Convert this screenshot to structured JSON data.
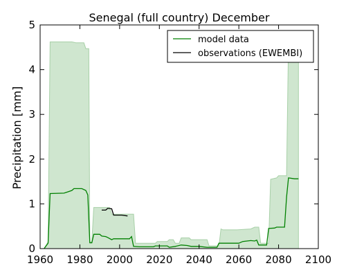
{
  "chart_data": {
    "type": "line",
    "title": "Senegal (full country) December",
    "xlabel": "",
    "ylabel": "Precipitation [mm]",
    "xlim": [
      1960,
      2100
    ],
    "ylim": [
      0,
      5
    ],
    "xticks": [
      "1960",
      "1980",
      "2000",
      "2020",
      "2040",
      "2060",
      "2080",
      "2100"
    ],
    "yticks": [
      "0",
      "1",
      "2",
      "3",
      "4",
      "5"
    ],
    "grid": false,
    "legend_position": "top-right",
    "band": {
      "color": "#cfe6cf",
      "edge_color": "#a8d0a8",
      "upper": [
        [
          1962,
          0
        ],
        [
          1964,
          0.15
        ],
        [
          1965,
          4.62
        ],
        [
          1976,
          4.62
        ],
        [
          1978,
          4.6
        ],
        [
          1982,
          4.6
        ],
        [
          1983,
          4.47
        ],
        [
          1984.5,
          4.47
        ],
        [
          1985,
          0.15
        ],
        [
          1986,
          0.15
        ],
        [
          1987,
          0.92
        ],
        [
          1995,
          0.92
        ],
        [
          1996,
          0.77
        ],
        [
          2007,
          0.77
        ],
        [
          2008,
          0.12
        ],
        [
          2018,
          0.12
        ],
        [
          2019,
          0.16
        ],
        [
          2024,
          0.16
        ],
        [
          2025,
          0.2
        ],
        [
          2027,
          0.2
        ],
        [
          2028,
          0.12
        ],
        [
          2030,
          0.12
        ],
        [
          2031,
          0.24
        ],
        [
          2035,
          0.24
        ],
        [
          2036,
          0.2
        ],
        [
          2044,
          0.2
        ],
        [
          2045,
          0.06
        ],
        [
          2050,
          0.06
        ],
        [
          2051,
          0.44
        ],
        [
          2052,
          0.42
        ],
        [
          2058,
          0.42
        ],
        [
          2059,
          0.42
        ],
        [
          2066,
          0.44
        ],
        [
          2068,
          0.48
        ],
        [
          2070,
          0.48
        ],
        [
          2071,
          0.12
        ],
        [
          2075,
          0.12
        ],
        [
          2076,
          1.55
        ],
        [
          2079,
          1.58
        ],
        [
          2080,
          1.63
        ],
        [
          2084,
          1.63
        ],
        [
          2085,
          4.62
        ],
        [
          2090,
          4.62
        ]
      ],
      "lower": [
        [
          1962,
          0
        ],
        [
          2090,
          0
        ]
      ]
    },
    "series": [
      {
        "name": "model data",
        "color": "#008000",
        "points": [
          [
            1962,
            0
          ],
          [
            1964,
            0.12
          ],
          [
            1965,
            1.23
          ],
          [
            1972,
            1.24
          ],
          [
            1974,
            1.27
          ],
          [
            1976,
            1.3
          ],
          [
            1977,
            1.34
          ],
          [
            1981,
            1.34
          ],
          [
            1983,
            1.3
          ],
          [
            1984,
            1.2
          ],
          [
            1985,
            0.13
          ],
          [
            1986,
            0.13
          ],
          [
            1987,
            0.32
          ],
          [
            1990,
            0.32
          ],
          [
            1991,
            0.28
          ],
          [
            1993,
            0.27
          ],
          [
            1994,
            0.25
          ],
          [
            1996,
            0.2
          ],
          [
            1997,
            0.22
          ],
          [
            2005,
            0.22
          ],
          [
            2006,
            0.27
          ],
          [
            2007,
            0.05
          ],
          [
            2010,
            0.04
          ],
          [
            2017,
            0.04
          ],
          [
            2018,
            0.06
          ],
          [
            2024,
            0.06
          ],
          [
            2025,
            0.03
          ],
          [
            2028,
            0.05
          ],
          [
            2031,
            0.08
          ],
          [
            2034,
            0.07
          ],
          [
            2036,
            0.05
          ],
          [
            2040,
            0.05
          ],
          [
            2044,
            0.03
          ],
          [
            2049,
            0.03
          ],
          [
            2050,
            0.12
          ],
          [
            2060,
            0.12
          ],
          [
            2062,
            0.16
          ],
          [
            2066,
            0.18
          ],
          [
            2068,
            0.17
          ],
          [
            2069,
            0.19
          ],
          [
            2070,
            0.08
          ],
          [
            2074,
            0.08
          ],
          [
            2075,
            0.45
          ],
          [
            2078,
            0.46
          ],
          [
            2079,
            0.48
          ],
          [
            2083,
            0.48
          ],
          [
            2084,
            1.15
          ],
          [
            2085,
            1.58
          ],
          [
            2088,
            1.56
          ],
          [
            2090,
            1.56
          ]
        ]
      },
      {
        "name": "observations (EWEMBI)",
        "color": "#000000",
        "points": [
          [
            1991,
            0.86
          ],
          [
            1993,
            0.86
          ],
          [
            1994,
            0.9
          ],
          [
            1996,
            0.89
          ],
          [
            1997,
            0.75
          ],
          [
            2001,
            0.75
          ],
          [
            2004,
            0.73
          ]
        ]
      }
    ]
  }
}
